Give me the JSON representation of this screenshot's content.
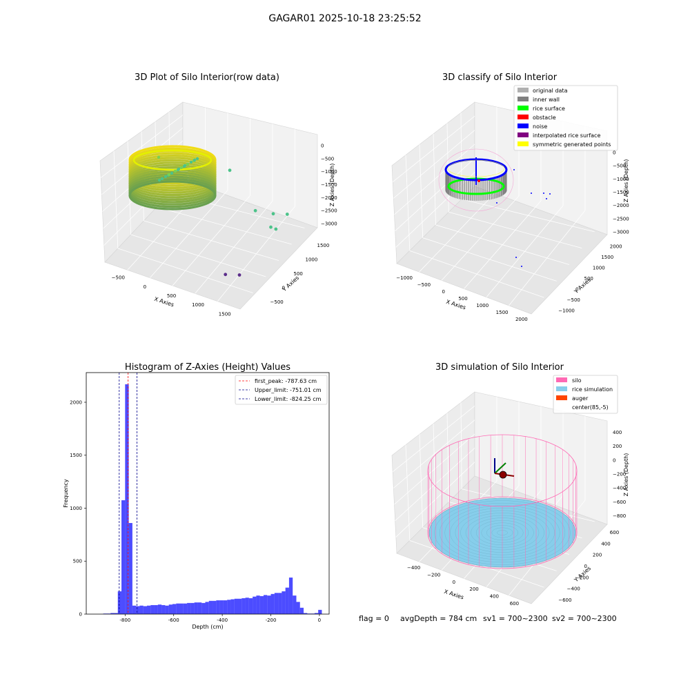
{
  "suptitle": "GAGAR01 2025-10-18 23:25:52",
  "footer": {
    "flag": "flag = 0",
    "avg_depth": "avgDepth = 784 cm",
    "sv1": "sv1 = 700~2300",
    "sv2": "sv2 = 700~2300"
  },
  "colors": {
    "hist_bar": "#0000ff",
    "peak_line": "#ff0000",
    "limit_line": "#00008b",
    "original": "#b0b0b0",
    "inner_wall": "#808080",
    "rice_surface": "#00ff00",
    "obstacle": "#ff0000",
    "noise": "#0000ff",
    "interpolated": "#800080",
    "symmetric": "#ffff00",
    "silo": "#ff69b4",
    "rice_sim": "#87ceeb",
    "auger": "#ff4500"
  },
  "chart_data": [
    {
      "type": "scatter3d",
      "title": "3D Plot of Silo Interior(row data)",
      "xlabel": "X Axies",
      "ylabel": "Y Axies",
      "zlabel": "Z Axies (Depth)",
      "xticks": [
        "−500",
        "0",
        "500",
        "1000",
        "1500"
      ],
      "yticks": [
        "−500",
        "0",
        "500",
        "1000",
        "1500"
      ],
      "zticks": [
        "0",
        "−500",
        "−1000",
        "−1500",
        "−2000",
        "−2500",
        "−3000"
      ],
      "outliers": [
        {
          "x": 1000,
          "y": 600,
          "z": -600
        },
        {
          "x": 1300,
          "y": 700,
          "z": -1550
        },
        {
          "x": 1500,
          "y": 800,
          "z": -1600
        },
        {
          "x": 1650,
          "y": 900,
          "z": -1600
        },
        {
          "x": 1500,
          "y": 700,
          "z": -1900
        },
        {
          "x": 1550,
          "y": 750,
          "z": -1950
        },
        {
          "x": 1100,
          "y": 100,
          "z": -3000
        },
        {
          "x": 1250,
          "y": 200,
          "z": -3000
        }
      ]
    },
    {
      "type": "scatter3d",
      "title": "3D classify of Silo Interior",
      "xlabel": "X Axies",
      "ylabel": "Y Axies",
      "zlabel": "Z Axies (Depth)",
      "xticks": [
        "−1000",
        "−500",
        "0",
        "500",
        "1000",
        "1500",
        "2000"
      ],
      "yticks": [
        "−1000",
        "−500",
        "0",
        "500",
        "1000",
        "1500",
        "2000"
      ],
      "zticks": [
        "0",
        "−500",
        "−1000",
        "−1500",
        "−2000",
        "−2500",
        "−3000"
      ],
      "legend_loc": "upper right",
      "legend": [
        {
          "label": "original data",
          "color_key": "original"
        },
        {
          "label": "inner wall",
          "color_key": "inner_wall"
        },
        {
          "label": "rice surface",
          "color_key": "rice_surface"
        },
        {
          "label": "obstacle",
          "color_key": "obstacle"
        },
        {
          "label": "noise",
          "color_key": "noise"
        },
        {
          "label": "interpolated rice surface",
          "color_key": "interpolated"
        },
        {
          "label": "symmetric generated points",
          "color_key": "symmetric"
        }
      ]
    },
    {
      "type": "bar",
      "title": "Histogram of Z-Axies (Height) Values",
      "xlabel": "Depth (cm)",
      "ylabel": "Frequency",
      "xlim": [
        -960,
        40
      ],
      "ylim": [
        0,
        2280
      ],
      "xticks": [
        -800,
        -600,
        -400,
        -200,
        0
      ],
      "yticks": [
        0,
        500,
        1000,
        1500,
        2000
      ],
      "bin_width": 15,
      "bins": [
        {
          "x": -890,
          "y": 5
        },
        {
          "x": -875,
          "y": 5
        },
        {
          "x": -860,
          "y": 10
        },
        {
          "x": -845,
          "y": 10
        },
        {
          "x": -830,
          "y": 215
        },
        {
          "x": -815,
          "y": 1075
        },
        {
          "x": -800,
          "y": 2170
        },
        {
          "x": -785,
          "y": 860
        },
        {
          "x": -770,
          "y": 80
        },
        {
          "x": -755,
          "y": 75
        },
        {
          "x": -740,
          "y": 80
        },
        {
          "x": -725,
          "y": 75
        },
        {
          "x": -710,
          "y": 80
        },
        {
          "x": -695,
          "y": 85
        },
        {
          "x": -680,
          "y": 85
        },
        {
          "x": -665,
          "y": 90
        },
        {
          "x": -650,
          "y": 85
        },
        {
          "x": -635,
          "y": 80
        },
        {
          "x": -620,
          "y": 90
        },
        {
          "x": -605,
          "y": 95
        },
        {
          "x": -590,
          "y": 100
        },
        {
          "x": -575,
          "y": 100
        },
        {
          "x": -560,
          "y": 100
        },
        {
          "x": -545,
          "y": 105
        },
        {
          "x": -530,
          "y": 105
        },
        {
          "x": -515,
          "y": 110
        },
        {
          "x": -500,
          "y": 110
        },
        {
          "x": -485,
          "y": 105
        },
        {
          "x": -470,
          "y": 115
        },
        {
          "x": -455,
          "y": 125
        },
        {
          "x": -440,
          "y": 125
        },
        {
          "x": -425,
          "y": 130
        },
        {
          "x": -410,
          "y": 130
        },
        {
          "x": -395,
          "y": 130
        },
        {
          "x": -380,
          "y": 135
        },
        {
          "x": -365,
          "y": 140
        },
        {
          "x": -350,
          "y": 145
        },
        {
          "x": -335,
          "y": 145
        },
        {
          "x": -320,
          "y": 150
        },
        {
          "x": -305,
          "y": 155
        },
        {
          "x": -290,
          "y": 150
        },
        {
          "x": -275,
          "y": 165
        },
        {
          "x": -260,
          "y": 175
        },
        {
          "x": -245,
          "y": 170
        },
        {
          "x": -230,
          "y": 180
        },
        {
          "x": -215,
          "y": 175
        },
        {
          "x": -200,
          "y": 190
        },
        {
          "x": -185,
          "y": 200
        },
        {
          "x": -170,
          "y": 200
        },
        {
          "x": -155,
          "y": 215
        },
        {
          "x": -140,
          "y": 250
        },
        {
          "x": -125,
          "y": 345
        },
        {
          "x": -110,
          "y": 175
        },
        {
          "x": -95,
          "y": 115
        },
        {
          "x": -80,
          "y": 60
        },
        {
          "x": -65,
          "y": 10
        },
        {
          "x": -50,
          "y": 5
        },
        {
          "x": -35,
          "y": 5
        },
        {
          "x": -20,
          "y": 10
        },
        {
          "x": -5,
          "y": 40
        }
      ],
      "vlines": [
        {
          "label": "first_peak: -787.63 cm",
          "x": -787.63,
          "color_key": "peak_line"
        },
        {
          "label": "Upper_limit: -751.01 cm",
          "x": -751.01,
          "color_key": "limit_line"
        },
        {
          "label": "Lower_limit: -824.25 cm",
          "x": -824.25,
          "color_key": "limit_line"
        }
      ],
      "legend_loc": "upper right"
    },
    {
      "type": "surface3d",
      "title": "3D simulation of Silo Interior",
      "xlabel": "X Axies",
      "ylabel": "Y Axies",
      "zlabel": "Z Axies (Depth)",
      "xticks": [
        "−400",
        "−200",
        "0",
        "200",
        "400",
        "600"
      ],
      "yticks": [
        "−600",
        "−400",
        "−200",
        "0",
        "200",
        "400",
        "600"
      ],
      "zticks": [
        "400",
        "200",
        "0",
        "−200",
        "−400",
        "−600",
        "−800"
      ],
      "legend_loc": "upper right",
      "legend": [
        {
          "label": "silo",
          "color_key": "silo"
        },
        {
          "label": "rice simulation",
          "color_key": "rice_sim"
        },
        {
          "label": "auger",
          "color_key": "auger"
        },
        {
          "label": "center(85,-5)",
          "color_key": ""
        }
      ]
    }
  ]
}
